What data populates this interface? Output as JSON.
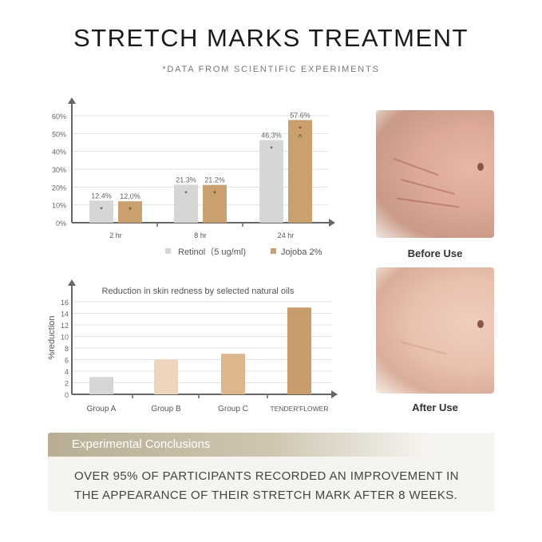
{
  "title": "STRETCH MARKS TREATMENT",
  "subtitle": "*DATA FROM SCIENTIFIC EXPERIMENTS",
  "chart_data": [
    {
      "type": "bar",
      "categories": [
        "2 hr",
        "8 hr",
        "24 hr"
      ],
      "series": [
        {
          "name": "Retinol（5 ug/ml)",
          "values": [
            12.4,
            21.3,
            46.3
          ],
          "labels": [
            "12.4%",
            "21.3%",
            "46.3%"
          ],
          "color": "#d6d6d6"
        },
        {
          "name": "Jojoba  2%",
          "values": [
            12.0,
            21.2,
            57.6
          ],
          "labels": [
            "12.0%",
            "21.2%",
            "57.6%"
          ],
          "color": "#c9a06e"
        }
      ],
      "yticks": [
        "0%",
        "10%",
        "20%",
        "30%",
        "40%",
        "50%",
        "60%"
      ],
      "ylim": [
        0,
        60
      ],
      "grid": true,
      "legend": "bottom-right",
      "annotations": [
        "*",
        "^"
      ]
    },
    {
      "type": "bar",
      "title": "Reduction in skin redness by selected natural oils",
      "ylabel": "%reduction",
      "categories": [
        "Group A",
        "Group B",
        "Group C",
        "TENDER'FLOWER"
      ],
      "values": [
        3,
        6,
        7,
        15
      ],
      "colors": [
        "#d6d6d6",
        "#ecd4bd",
        "#ddb68c",
        "#c99c6c"
      ],
      "yticks": [
        "0",
        "2",
        "4",
        "6",
        "8",
        "10",
        "12",
        "14",
        "16"
      ],
      "ylim": [
        0,
        16
      ],
      "grid": true
    }
  ],
  "photos": {
    "before_label": "Before Use",
    "after_label": "After Use"
  },
  "conclusion": {
    "title": "Experimental Conclusions",
    "line1": "OVER 95% OF PARTICIPANTS RECORDED AN IMPROVEMENT IN",
    "line2": "THE APPEARANCE OF THEIR STRETCH MARK AFTER 8 WEEKS."
  }
}
